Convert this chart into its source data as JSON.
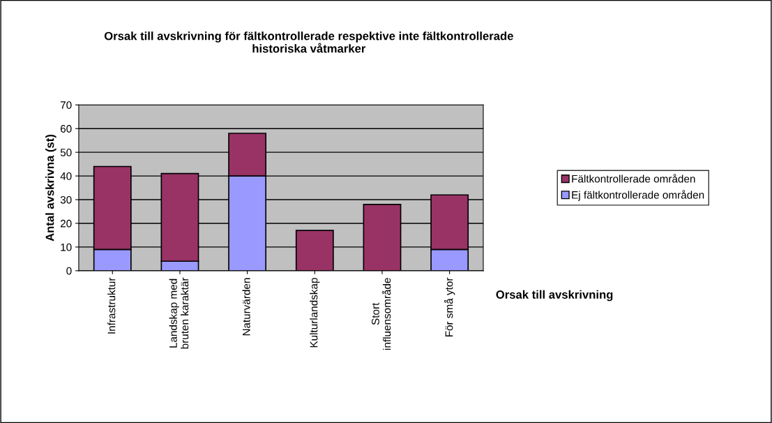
{
  "chart_data": {
    "type": "bar",
    "title": "Orsak till avskrivning för fältkontrollerade respektive inte fältkontrollerade\nhistoriska våtmarker",
    "xlabel": "Orsak till avskrivning",
    "ylabel": "Antal avskrivna (st)",
    "categories": [
      "Infrastruktur",
      "Landskap med\nbruten karaktär",
      "Naturvärden",
      "Kulturlandskap",
      "Stort\ninfluensområde",
      "För små ytor"
    ],
    "stacked": true,
    "series": [
      {
        "name": "Ej fältkontrollerade områden",
        "color": "#9999ff",
        "values": [
          9,
          4,
          40,
          0,
          0,
          9
        ]
      },
      {
        "name": "Fältkontrollerade områden",
        "color": "#993366",
        "values": [
          35,
          37,
          18,
          17,
          28,
          23
        ]
      }
    ],
    "ylim": [
      0,
      70
    ],
    "yticks": [
      0,
      10,
      20,
      30,
      40,
      50,
      60,
      70
    ],
    "grid": "y",
    "legend": "right"
  }
}
